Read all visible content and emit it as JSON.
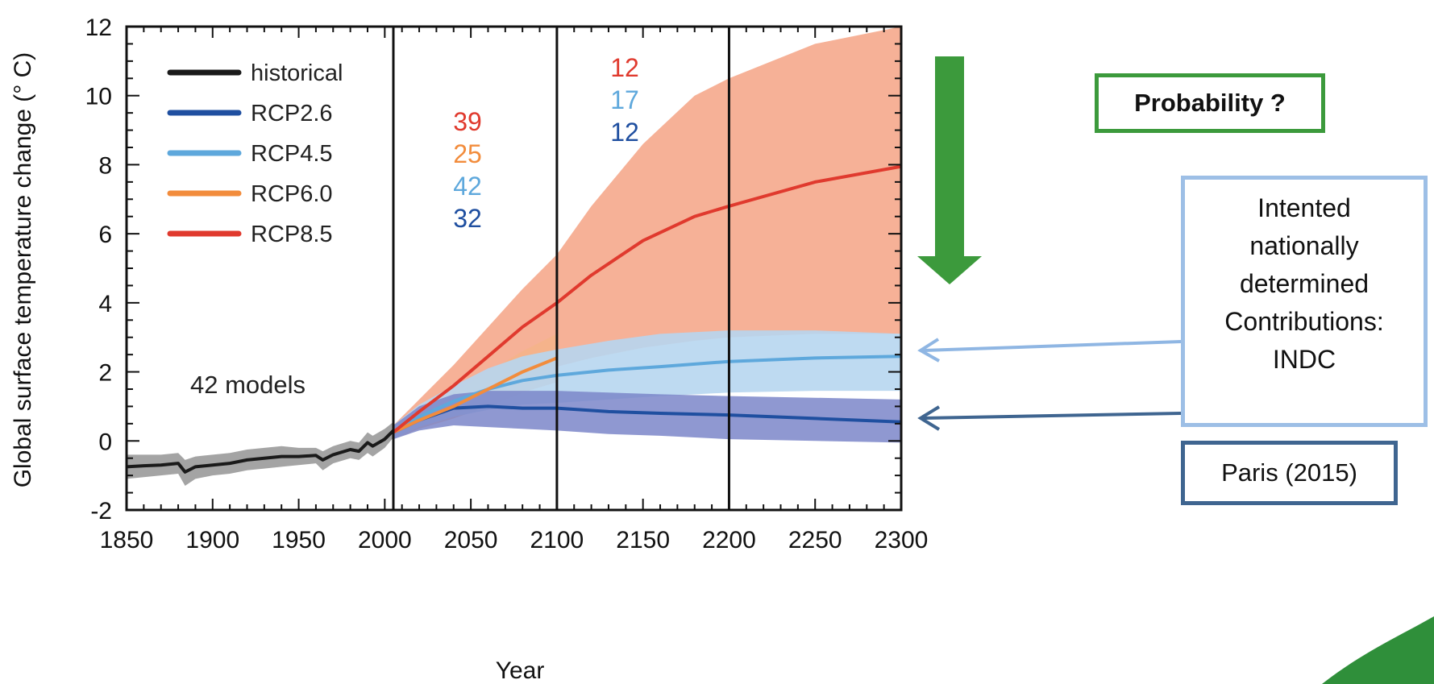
{
  "chart_data": {
    "type": "line",
    "title": "",
    "xlabel": "Year",
    "ylabel": "Global surface temperature change (° C)",
    "xlim": [
      1850,
      2300
    ],
    "ylim": [
      -2,
      12
    ],
    "x_ticks": [
      1850,
      1900,
      1950,
      2000,
      2050,
      2100,
      2150,
      2200,
      2250,
      2300
    ],
    "y_ticks": [
      12,
      10,
      8,
      6,
      4,
      2,
      0,
      -2
    ],
    "vertical_lines": [
      2005,
      2100,
      2200
    ],
    "grid": false,
    "legend_position": "top-left",
    "model_count_label": "42 models",
    "series": [
      {
        "name": "historical",
        "color": "#1a1a1a",
        "band_color": "#9a9a9a",
        "x": [
          1850,
          1860,
          1870,
          1880,
          1884,
          1890,
          1900,
          1910,
          1920,
          1930,
          1940,
          1950,
          1960,
          1964,
          1970,
          1980,
          1985,
          1990,
          1993,
          2000,
          2005
        ],
        "y": [
          -0.75,
          -0.72,
          -0.7,
          -0.65,
          -0.9,
          -0.75,
          -0.7,
          -0.65,
          -0.55,
          -0.5,
          -0.45,
          -0.45,
          -0.42,
          -0.55,
          -0.4,
          -0.25,
          -0.3,
          -0.05,
          -0.15,
          0.05,
          0.3
        ],
        "lower": [
          -1.1,
          -1.05,
          -1.0,
          -0.95,
          -1.3,
          -1.1,
          -1.0,
          -0.95,
          -0.85,
          -0.8,
          -0.75,
          -0.7,
          -0.65,
          -0.85,
          -0.65,
          -0.5,
          -0.55,
          -0.35,
          -0.45,
          -0.2,
          0.1
        ],
        "upper": [
          -0.4,
          -0.4,
          -0.4,
          -0.35,
          -0.55,
          -0.45,
          -0.4,
          -0.35,
          -0.25,
          -0.2,
          -0.15,
          -0.2,
          -0.2,
          -0.3,
          -0.15,
          0.0,
          -0.05,
          0.25,
          0.15,
          0.35,
          0.55
        ]
      },
      {
        "name": "RCP2.6",
        "color": "#1f4fa0",
        "band_color": "#7b86c9",
        "x": [
          2005,
          2020,
          2040,
          2060,
          2080,
          2100,
          2130,
          2160,
          2200,
          2250,
          2300
        ],
        "y": [
          0.25,
          0.6,
          0.95,
          1.0,
          0.95,
          0.95,
          0.85,
          0.8,
          0.75,
          0.65,
          0.55
        ],
        "lower": [
          0.05,
          0.3,
          0.45,
          0.4,
          0.35,
          0.3,
          0.2,
          0.15,
          0.05,
          0.0,
          -0.05
        ],
        "upper": [
          0.45,
          1.0,
          1.35,
          1.45,
          1.45,
          1.45,
          1.4,
          1.35,
          1.3,
          1.25,
          1.2
        ]
      },
      {
        "name": "RCP4.5",
        "color": "#5ea8dc",
        "band_color": "#b7d6f0",
        "x": [
          2005,
          2020,
          2040,
          2060,
          2080,
          2100,
          2130,
          2160,
          2200,
          2250,
          2300
        ],
        "y": [
          0.25,
          0.7,
          1.15,
          1.5,
          1.75,
          1.9,
          2.05,
          2.15,
          2.3,
          2.4,
          2.45
        ],
        "lower": [
          0.05,
          0.4,
          0.7,
          0.9,
          1.05,
          1.1,
          1.2,
          1.3,
          1.4,
          1.45,
          1.45
        ],
        "upper": [
          0.45,
          1.05,
          1.6,
          2.1,
          2.45,
          2.65,
          2.9,
          3.1,
          3.2,
          3.2,
          3.1
        ]
      },
      {
        "name": "RCP6.0",
        "color": "#f28c3c",
        "band_color": "#f5b48a",
        "x": [
          2005,
          2020,
          2040,
          2060,
          2080,
          2100
        ],
        "y": [
          0.25,
          0.6,
          1.0,
          1.5,
          2.0,
          2.4
        ],
        "lower": [
          0.05,
          0.35,
          0.65,
          1.0,
          1.4,
          1.7
        ],
        "upper": [
          0.45,
          0.9,
          1.4,
          2.0,
          2.6,
          3.1
        ]
      },
      {
        "name": "RCP8.5",
        "color": "#e03a2e",
        "band_color": "#f5a88c",
        "x": [
          2005,
          2020,
          2040,
          2060,
          2080,
          2100,
          2120,
          2150,
          2180,
          2200,
          2250,
          2300
        ],
        "y": [
          0.25,
          0.85,
          1.6,
          2.45,
          3.3,
          4.0,
          4.8,
          5.8,
          6.5,
          6.8,
          7.5,
          7.95
        ],
        "lower": [
          0.05,
          0.5,
          0.9,
          1.35,
          1.8,
          2.15,
          2.4,
          2.7,
          2.9,
          3.0,
          3.1,
          3.1
        ],
        "upper": [
          0.45,
          1.2,
          2.2,
          3.3,
          4.4,
          5.4,
          6.8,
          8.6,
          10.0,
          10.5,
          11.5,
          12
        ]
      }
    ],
    "period_counts": [
      {
        "period": "2006-2100",
        "values": [
          {
            "text": "39",
            "color": "#e03a2e"
          },
          {
            "text": "25",
            "color": "#f28c3c"
          },
          {
            "text": "42",
            "color": "#5ea8dc"
          },
          {
            "text": "32",
            "color": "#1f4fa0"
          }
        ]
      },
      {
        "period": "2100-2200",
        "values": [
          {
            "text": "12",
            "color": "#e03a2e"
          },
          {
            "text": "17",
            "color": "#5ea8dc"
          },
          {
            "text": "12",
            "color": "#1f4fa0"
          }
        ]
      }
    ]
  },
  "annotations": {
    "probability": "Probability ?",
    "indc_lines": [
      "Intented",
      "nationally",
      "determined",
      "Contributions:",
      "INDC"
    ],
    "paris": "Paris (2015)"
  },
  "colors": {
    "probability_arrow": "#3c9a3c",
    "indc_arrow": "#8fb6e3",
    "paris_arrow": "#3f6590",
    "swoosh": "#2f8f3a"
  }
}
